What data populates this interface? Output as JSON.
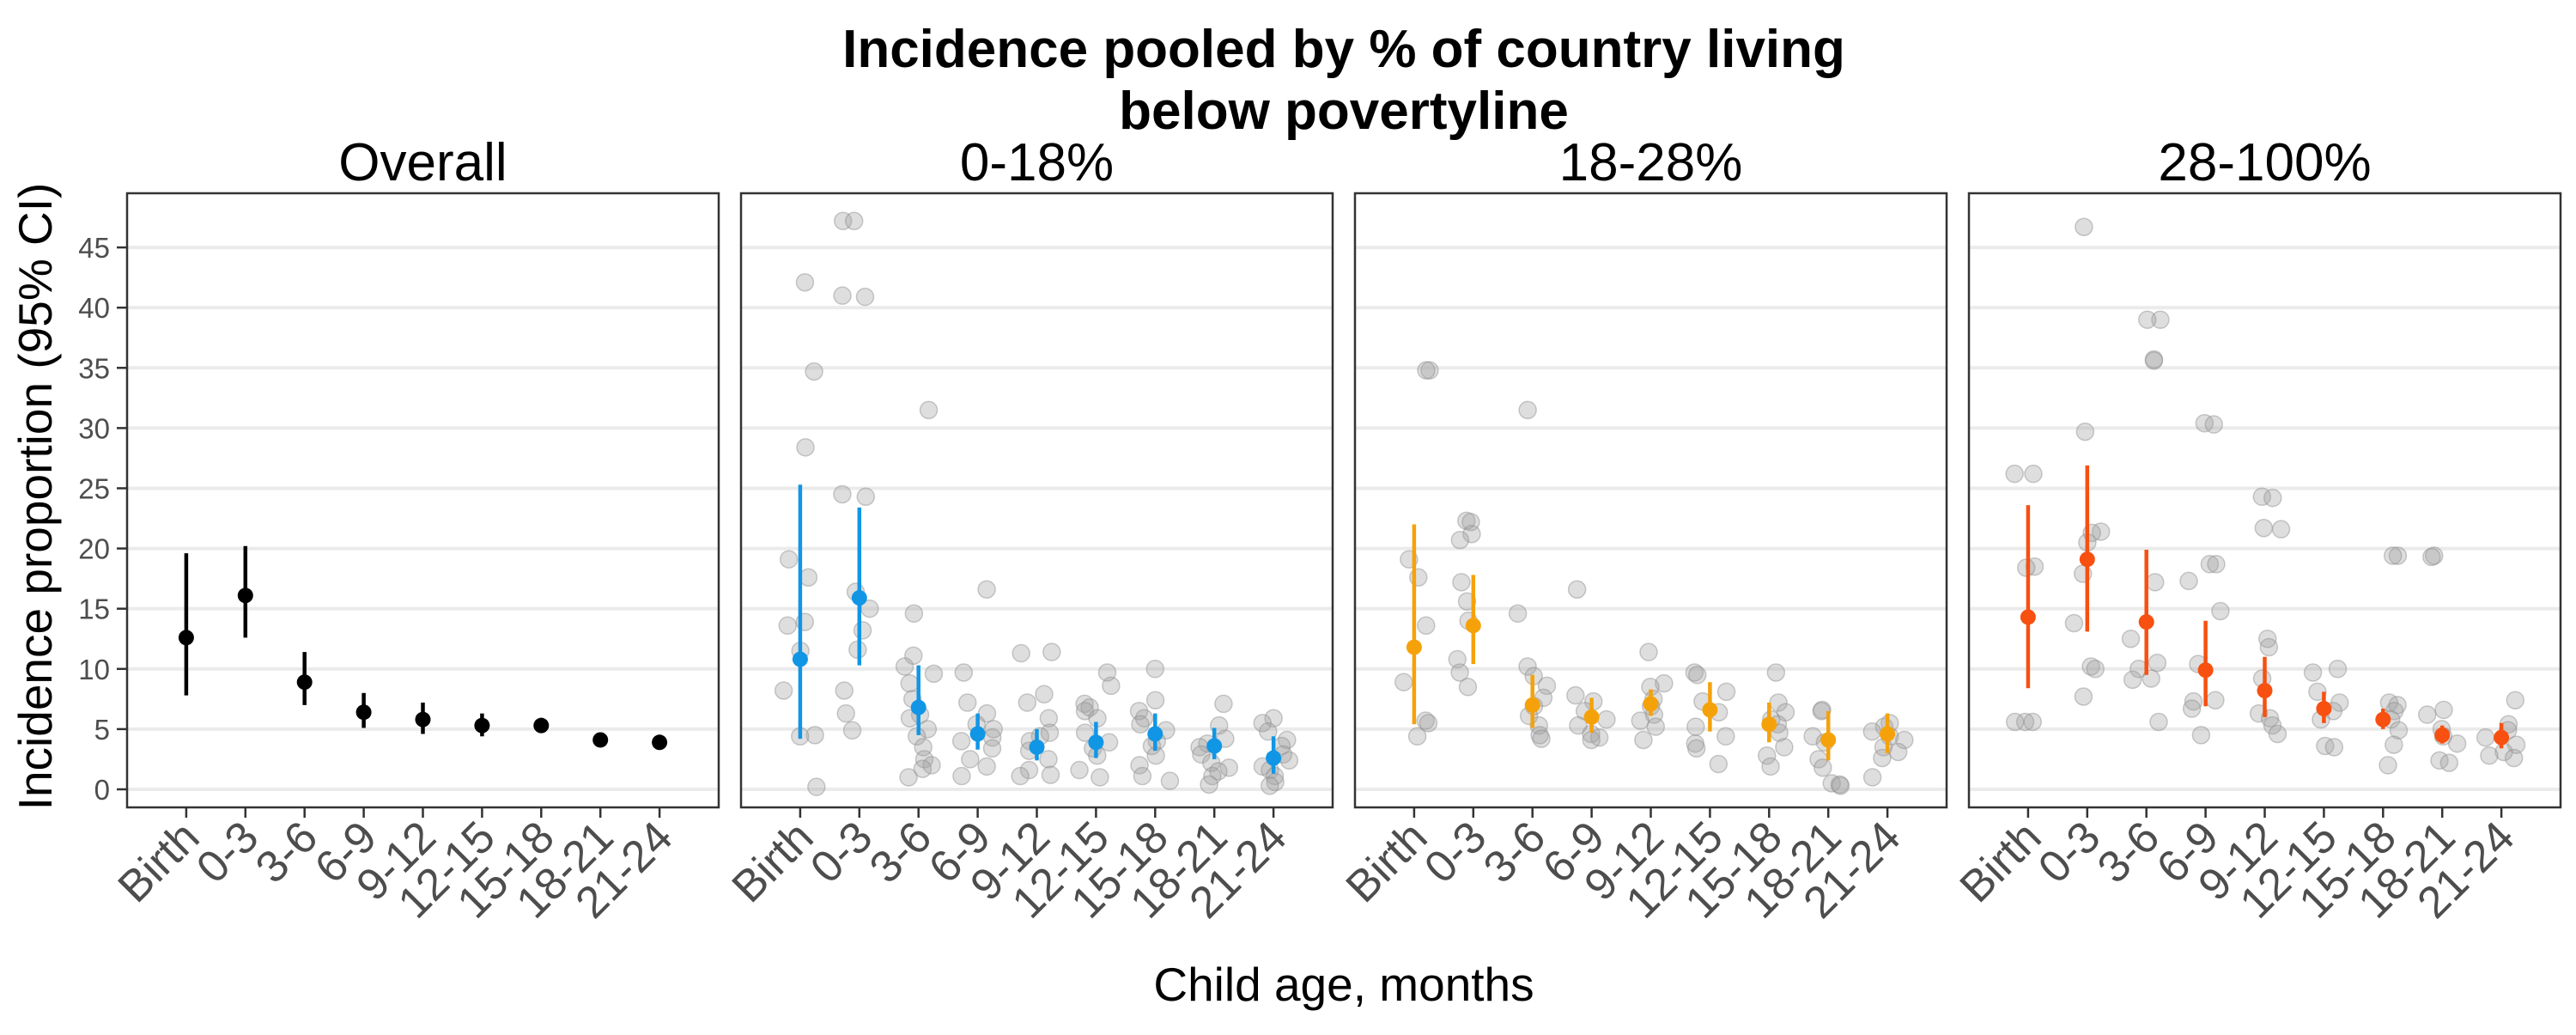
{
  "chart_data": {
    "type": "scatter",
    "title_lines": [
      "Incidence pooled by % of country living",
      "below povertyline"
    ],
    "xlabel": "Child age, months",
    "ylabel": "Incidence proportion (95% CI)",
    "categories": [
      "Birth",
      "0-3",
      "3-6",
      "6-9",
      "9-12",
      "12-15",
      "15-18",
      "18-21",
      "21-24"
    ],
    "y_ticks": [
      0,
      5,
      10,
      15,
      20,
      25,
      30,
      35,
      40,
      45
    ],
    "ylim": [
      -1.5,
      49.5
    ],
    "grid": true,
    "panels": [
      {
        "label": "Overall",
        "color": "#000000",
        "estimates": [
          12.6,
          16.1,
          8.9,
          6.4,
          5.8,
          5.3,
          5.3,
          4.1,
          3.9
        ],
        "ci_lower": [
          7.8,
          12.6,
          7.0,
          5.1,
          4.6,
          4.4,
          4.7,
          3.6,
          3.4
        ],
        "ci_upper": [
          19.6,
          20.2,
          11.4,
          8.0,
          7.2,
          6.3,
          5.9,
          4.6,
          4.4
        ],
        "studies": [
          [],
          [],
          [],
          [],
          [],
          [],
          [],
          [],
          []
        ]
      },
      {
        "label": "0-18%",
        "color": "#1196e6",
        "estimates": [
          10.8,
          15.9,
          6.8,
          4.6,
          3.5,
          3.9,
          4.6,
          3.6,
          2.6
        ],
        "ci_lower": [
          4.2,
          10.3,
          4.5,
          3.3,
          2.4,
          2.6,
          3.2,
          2.5,
          1.3
        ],
        "ci_upper": [
          25.3,
          23.4,
          10.3,
          6.3,
          5.0,
          5.6,
          6.3,
          5.1,
          4.4
        ],
        "studies": [
          [
            42.1,
            34.7,
            28.4,
            19.1,
            17.6,
            13.9,
            13.6,
            11.5,
            8.2,
            4.5,
            4.4,
            0.2
          ],
          [
            47.2,
            47.2,
            41.0,
            40.9,
            24.5,
            24.3,
            16.4,
            15.0,
            13.2,
            11.6,
            8.2,
            6.3,
            4.9
          ],
          [
            31.5,
            14.6,
            11.1,
            10.2,
            9.6,
            8.8,
            7.5,
            6.2,
            5.9,
            5.0,
            4.4,
            3.5,
            2.5,
            2.0,
            1.7,
            1.0
          ],
          [
            16.6,
            9.7,
            7.2,
            6.3,
            5.4,
            5.0,
            4.3,
            4.0,
            3.4,
            2.5,
            1.9,
            1.1
          ],
          [
            11.4,
            11.3,
            7.9,
            7.2,
            5.9,
            4.7,
            4.4,
            4.0,
            3.2,
            2.5,
            1.6,
            1.2,
            1.1
          ],
          [
            9.7,
            8.6,
            7.1,
            6.8,
            6.5,
            5.9,
            4.7,
            3.9,
            3.4,
            2.8,
            1.6,
            1.0
          ],
          [
            10.0,
            7.4,
            6.5,
            5.9,
            5.4,
            4.9,
            4.0,
            3.6,
            2.8,
            2.0,
            1.1,
            0.7
          ],
          [
            7.1,
            5.3,
            4.2,
            3.8,
            3.5,
            2.9,
            2.2,
            1.8,
            1.5,
            1.1,
            0.4
          ],
          [
            5.9,
            5.5,
            4.8,
            4.1,
            3.6,
            2.9,
            2.4,
            1.9,
            1.6,
            1.1,
            0.6,
            0.3
          ]
        ]
      },
      {
        "label": "18-28%",
        "color": "#f5a20a",
        "estimates": [
          11.8,
          13.6,
          7.0,
          6.0,
          7.1,
          6.6,
          5.4,
          4.1,
          4.6
        ],
        "ci_lower": [
          5.4,
          10.4,
          5.1,
          4.7,
          6.1,
          4.8,
          3.9,
          2.4,
          3.0
        ],
        "ci_upper": [
          22.0,
          17.8,
          9.5,
          7.6,
          8.3,
          8.9,
          7.2,
          6.5,
          6.3
        ],
        "studies": [
          [
            34.8,
            34.8,
            19.1,
            17.6,
            13.6,
            8.9,
            5.7,
            5.5,
            4.4
          ],
          [
            22.3,
            22.2,
            21.2,
            20.7,
            17.2,
            15.6,
            14.0,
            10.8,
            9.7,
            8.5
          ],
          [
            31.5,
            14.6,
            10.2,
            9.4,
            8.6,
            7.6,
            6.9,
            6.1,
            5.3,
            4.5,
            4.2
          ],
          [
            16.6,
            7.8,
            7.3,
            6.5,
            5.8,
            5.3,
            4.6,
            4.3,
            4.1
          ],
          [
            11.4,
            8.8,
            8.5,
            7.5,
            6.9,
            6.2,
            5.7,
            5.2,
            4.1
          ],
          [
            9.7,
            9.5,
            8.1,
            7.3,
            6.4,
            5.2,
            4.4,
            3.8,
            3.4,
            2.1
          ],
          [
            9.7,
            7.2,
            6.4,
            5.8,
            5.4,
            4.7,
            3.5,
            2.8,
            1.9
          ],
          [
            6.6,
            6.5,
            4.4,
            3.9,
            2.5,
            1.8,
            0.5,
            0.4,
            0.3
          ],
          [
            5.5,
            5.2,
            4.8,
            4.4,
            4.1,
            3.5,
            3.1,
            2.6,
            1.0
          ]
        ]
      },
      {
        "label": "28-100%",
        "color": "#f75011",
        "estimates": [
          14.3,
          19.1,
          13.9,
          9.9,
          8.2,
          6.7,
          5.8,
          4.5,
          4.3
        ],
        "ci_lower": [
          8.4,
          13.1,
          9.5,
          6.9,
          6.0,
          5.5,
          5.0,
          3.8,
          3.4
        ],
        "ci_upper": [
          23.6,
          26.9,
          19.9,
          14.0,
          11.0,
          8.1,
          6.7,
          5.3,
          5.5
        ],
        "studies": [
          [
            26.2,
            26.2,
            18.5,
            18.4,
            5.6,
            5.6,
            5.6
          ],
          [
            46.7,
            29.7,
            21.4,
            21.3,
            20.5,
            17.9,
            13.8,
            10.2,
            10.0,
            7.7
          ],
          [
            39.0,
            39.0,
            35.7,
            35.6,
            17.2,
            12.5,
            10.5,
            10.0,
            9.2,
            9.1,
            5.6
          ],
          [
            30.4,
            30.3,
            18.7,
            18.7,
            17.3,
            14.8,
            10.4,
            7.4,
            7.3,
            6.7,
            4.5
          ],
          [
            24.3,
            24.2,
            21.7,
            21.6,
            12.5,
            11.8,
            9.2,
            6.3,
            5.9,
            5.3,
            4.6
          ],
          [
            10.0,
            9.7,
            8.1,
            7.2,
            6.5,
            5.8,
            3.6,
            3.5
          ],
          [
            19.4,
            19.4,
            7.2,
            7.0,
            6.5,
            5.8,
            4.9,
            3.7,
            2.0
          ],
          [
            19.4,
            19.3,
            6.6,
            6.2,
            5.0,
            4.4,
            3.8,
            2.4,
            2.2
          ],
          [
            7.4,
            5.4,
            4.9,
            4.3,
            3.7,
            3.1,
            2.8,
            2.6
          ]
        ]
      }
    ]
  }
}
